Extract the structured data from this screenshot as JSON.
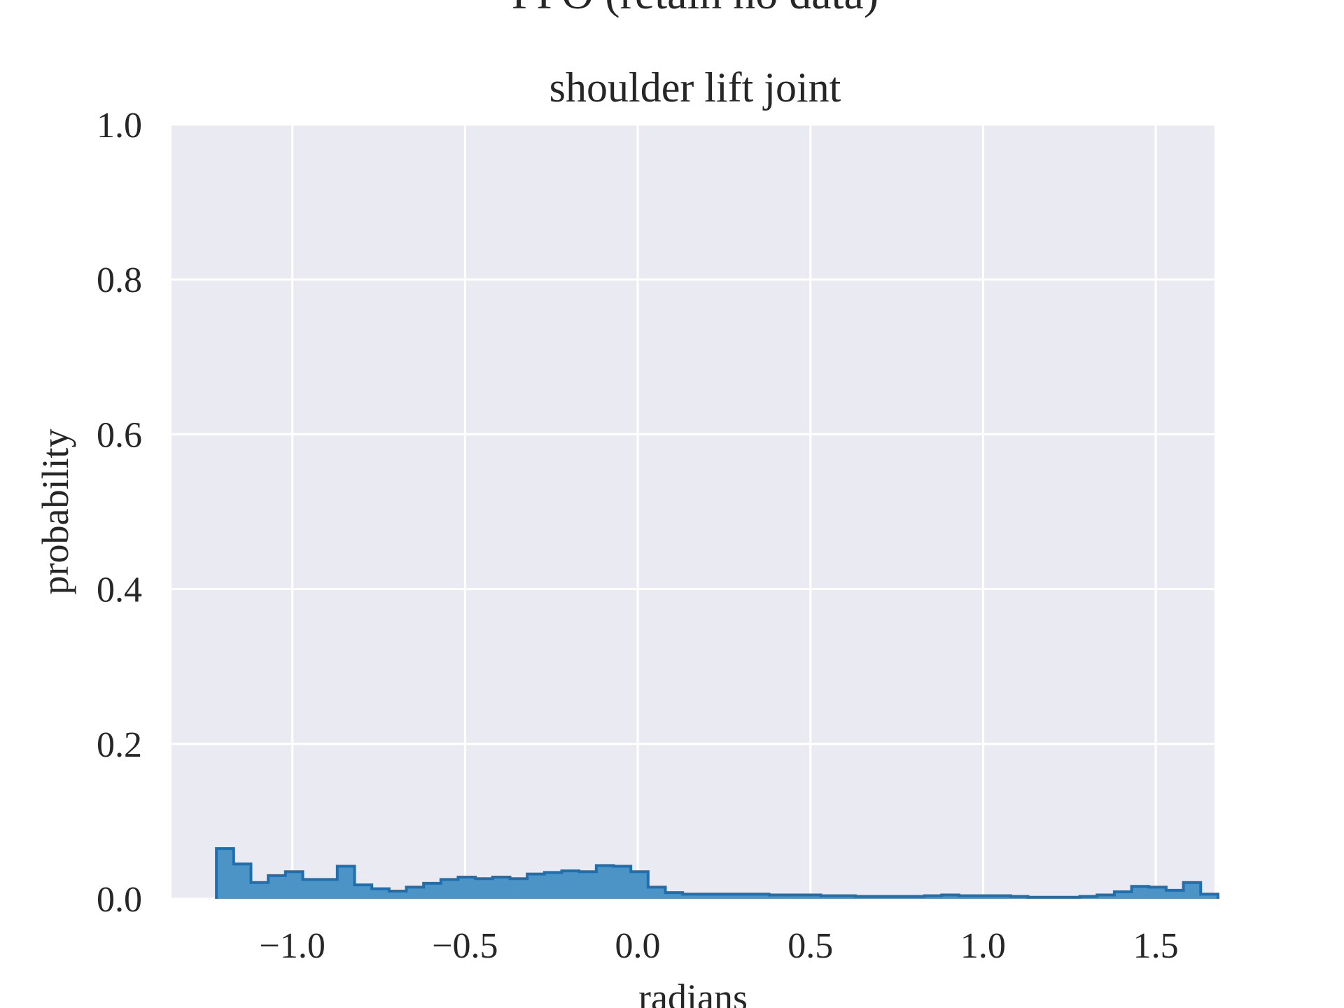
{
  "figure": {
    "suptitle": "PPO (retain no data)"
  },
  "chart_data": {
    "type": "histogram",
    "title": "shoulder lift joint",
    "xlabel": "radians",
    "ylabel": "probability",
    "xlim": [
      -1.35,
      1.67
    ],
    "ylim": [
      0.0,
      1.0
    ],
    "xticks": [
      -1.0,
      -0.5,
      0.0,
      0.5,
      1.0,
      1.5
    ],
    "xtick_labels": [
      "−1.0",
      "−0.5",
      "0.0",
      "0.5",
      "1.0",
      "1.5"
    ],
    "yticks": [
      0.0,
      0.2,
      0.4,
      0.6,
      0.8,
      1.0
    ],
    "ytick_labels": [
      "0.0",
      "0.2",
      "0.4",
      "0.6",
      "0.8",
      "1.0"
    ],
    "grid": true,
    "background": "#EAEAF2",
    "bar_color": "#4C93C6",
    "edge_color": "#1F6FAF",
    "bin_start": -1.22,
    "bin_width": 0.05,
    "values": [
      0.065,
      0.045,
      0.021,
      0.03,
      0.035,
      0.025,
      0.025,
      0.042,
      0.018,
      0.013,
      0.01,
      0.015,
      0.02,
      0.025,
      0.028,
      0.026,
      0.028,
      0.026,
      0.032,
      0.034,
      0.036,
      0.035,
      0.043,
      0.042,
      0.035,
      0.015,
      0.008,
      0.006,
      0.006,
      0.006,
      0.006,
      0.006,
      0.005,
      0.005,
      0.005,
      0.004,
      0.004,
      0.003,
      0.003,
      0.003,
      0.003,
      0.004,
      0.005,
      0.004,
      0.004,
      0.004,
      0.003,
      0.002,
      0.002,
      0.002,
      0.003,
      0.005,
      0.009,
      0.016,
      0.015,
      0.011,
      0.021,
      0.006
    ]
  }
}
